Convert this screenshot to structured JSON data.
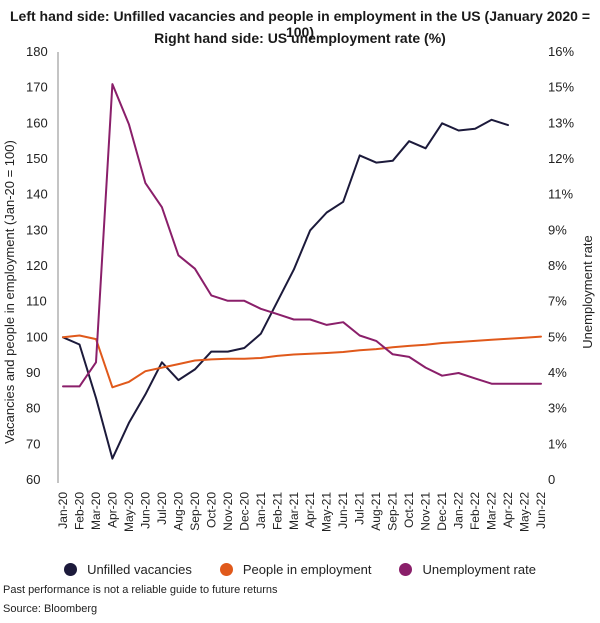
{
  "titles": {
    "line1": "Left hand side: Unfilled vacancies and people in employment in the US (January 2020 = 100)",
    "line2": "Right hand side: US unemployment rate (%)"
  },
  "footer": {
    "note": "Past performance is not a reliable guide to future returns",
    "source": "Source: Bloomberg"
  },
  "chart_data": {
    "type": "line",
    "ylabel": "Vacancies and people in employment (Jan-20 = 100)",
    "y2label": "Unemployment rate",
    "ylim": [
      60,
      180
    ],
    "y2lim": [
      0,
      16
    ],
    "yticks": [
      60,
      70,
      80,
      90,
      100,
      110,
      120,
      130,
      140,
      150,
      160,
      170,
      180
    ],
    "y2ticks": [
      "0",
      "1%",
      "3%",
      "4%",
      "5%",
      "7%",
      "8%",
      "9%",
      "11%",
      "12%",
      "13%",
      "15%",
      "16%"
    ],
    "categories": [
      "Jan-20",
      "Feb-20",
      "Mar-20",
      "Apr-20",
      "May-20",
      "Jun-20",
      "Jul-20",
      "Aug-20",
      "Sep-20",
      "Oct-20",
      "Nov-20",
      "Dec-20",
      "Jan-21",
      "Feb-21",
      "Mar-21",
      "Apr-21",
      "May-21",
      "Jun-21",
      "Jul-21",
      "Aug-21",
      "Sep-21",
      "Oct-21",
      "Nov-21",
      "Dec-21",
      "Jan-22",
      "Feb-22",
      "Mar-22",
      "Apr-22",
      "May-22",
      "Jun-22"
    ],
    "series": [
      {
        "name": "Unfilled vacancies",
        "axis": "left",
        "color": "#1c1a3b",
        "values": [
          100,
          98,
          83,
          66,
          76,
          84,
          93,
          88,
          91,
          96,
          96,
          97,
          101,
          110,
          119,
          130,
          135,
          138,
          151,
          149,
          149.5,
          155,
          153,
          160,
          158,
          158.5,
          161,
          159.5,
          null,
          null
        ]
      },
      {
        "name": "People in employment",
        "axis": "left",
        "color": "#e0591b",
        "values": [
          100,
          100.5,
          99.5,
          86,
          87.5,
          90.5,
          91.5,
          92.5,
          93.5,
          93.8,
          94,
          94,
          94.2,
          94.8,
          95.2,
          95.4,
          95.6,
          95.9,
          96.4,
          96.7,
          97.2,
          97.6,
          97.9,
          98.4,
          98.7,
          99,
          99.3,
          99.6,
          99.9,
          100.2
        ]
      },
      {
        "name": "Unemployment rate",
        "axis": "right",
        "color": "#8a1f6a",
        "values": [
          3.5,
          3.5,
          4.4,
          14.8,
          13.3,
          11.1,
          10.2,
          8.4,
          7.9,
          6.9,
          6.7,
          6.7,
          6.4,
          6.2,
          6.0,
          6.0,
          5.8,
          5.9,
          5.4,
          5.2,
          4.7,
          4.6,
          4.2,
          3.9,
          4.0,
          3.8,
          3.6,
          3.6,
          3.6,
          3.6
        ]
      }
    ],
    "legend_position": "bottom",
    "grid": false
  }
}
